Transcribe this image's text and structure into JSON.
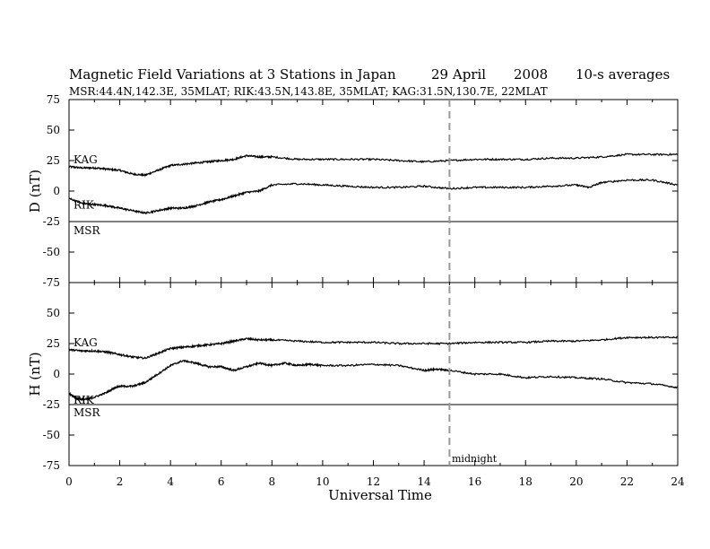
{
  "title": {
    "main": "Magnetic Field Variations at 3 Stations in Japan",
    "date_day": "29  April",
    "date_year": "2008",
    "averaging": "10-s averages"
  },
  "subtitle": "MSR:44.4N,142.3E, 35MLAT;  RIK:43.5N,143.8E, 35MLAT;  KAG:31.5N,130.7E, 22MLAT",
  "chart_data": [
    {
      "type": "line",
      "panel": "D",
      "ylabel": "D (nT)",
      "xlabel": "",
      "xlim": [
        0,
        24
      ],
      "ylim": [
        -75,
        75
      ],
      "yticks": [
        "75",
        "50",
        "25",
        "0",
        "-25",
        "-50",
        "-75"
      ],
      "grid": false,
      "midline_x": 15,
      "series": [
        {
          "name": "KAG",
          "x": [
            0,
            0.5,
            1,
            1.5,
            2,
            2.5,
            3,
            3.5,
            4,
            4.5,
            5,
            5.5,
            6,
            6.5,
            7,
            7.5,
            8,
            9,
            10,
            11,
            12,
            13,
            14,
            15,
            16,
            17,
            18,
            19,
            20,
            21,
            22,
            23,
            24
          ],
          "y": [
            20,
            19,
            19,
            18,
            17,
            14,
            13,
            17,
            21,
            22,
            23,
            24,
            25,
            26,
            29,
            28,
            28,
            26,
            26,
            26,
            26,
            25,
            24,
            25,
            26,
            26,
            26,
            27,
            27,
            28,
            30,
            30,
            30
          ]
        },
        {
          "name": "RIK",
          "x": [
            0,
            0.5,
            1,
            1.5,
            2,
            2.5,
            3,
            3.5,
            4,
            4.5,
            5,
            5.5,
            6,
            6.5,
            7,
            7.5,
            8,
            9,
            10,
            11,
            12,
            13,
            14,
            15,
            16,
            17,
            18,
            19,
            20,
            20.5,
            21,
            22,
            23,
            24
          ],
          "y": [
            -6,
            -10,
            -11,
            -12,
            -14,
            -16,
            -18,
            -16,
            -14,
            -14,
            -12,
            -9,
            -7,
            -4,
            -1,
            0,
            5,
            6,
            5,
            4,
            3,
            3,
            4,
            2,
            3,
            3,
            3,
            4,
            5,
            3,
            7,
            9,
            9,
            5
          ]
        },
        {
          "name": "MSR",
          "x": [
            0,
            24
          ],
          "y": [
            -25,
            -25
          ]
        }
      ]
    },
    {
      "type": "line",
      "panel": "H",
      "ylabel": "H (nT)",
      "xlabel": "Universal Time",
      "xlim": [
        0,
        24
      ],
      "ylim": [
        -75,
        75
      ],
      "yticks": [
        "75",
        "50",
        "25",
        "0",
        "-25",
        "-50",
        "-75"
      ],
      "xticks": [
        "0",
        "2",
        "4",
        "6",
        "8",
        "10",
        "12",
        "14",
        "16",
        "18",
        "20",
        "22",
        "24"
      ],
      "grid": false,
      "midline_x": 15,
      "annotation": "midnight",
      "series": [
        {
          "name": "KAG",
          "x": [
            0,
            0.5,
            1,
            1.5,
            2,
            2.5,
            3,
            3.5,
            4,
            4.5,
            5,
            5.5,
            6,
            6.5,
            7,
            7.5,
            8,
            9,
            10,
            11,
            12,
            13,
            14,
            15,
            16,
            17,
            18,
            19,
            20,
            21,
            22,
            23,
            24
          ],
          "y": [
            20,
            19,
            19,
            18,
            16,
            14,
            13,
            17,
            21,
            22,
            23,
            24,
            25,
            27,
            29,
            28,
            28,
            27,
            26,
            26,
            26,
            25,
            25,
            25,
            26,
            26,
            26,
            27,
            27,
            28,
            30,
            30,
            30
          ]
        },
        {
          "name": "RIK",
          "x": [
            0,
            0.3,
            0.6,
            1,
            1.5,
            1.8,
            2,
            2.5,
            3,
            3.5,
            4,
            4.5,
            5,
            5.5,
            6,
            6.5,
            7,
            7.5,
            8,
            8.5,
            9,
            9.5,
            10,
            11,
            12,
            13,
            14,
            14.5,
            15,
            16,
            17,
            18,
            19,
            20,
            21,
            22,
            23,
            24
          ],
          "y": [
            -16,
            -20,
            -21,
            -19,
            -15,
            -11,
            -10,
            -10,
            -7,
            0,
            7,
            11,
            9,
            6,
            6,
            3,
            6,
            9,
            7,
            9,
            7,
            8,
            7,
            7,
            8,
            7,
            3,
            4,
            3,
            0,
            0,
            -3,
            -2,
            -3,
            -4,
            -7,
            -8,
            -11
          ]
        },
        {
          "name": "MSR",
          "x": [
            0,
            24
          ],
          "y": [
            -25,
            -25
          ]
        }
      ]
    }
  ]
}
